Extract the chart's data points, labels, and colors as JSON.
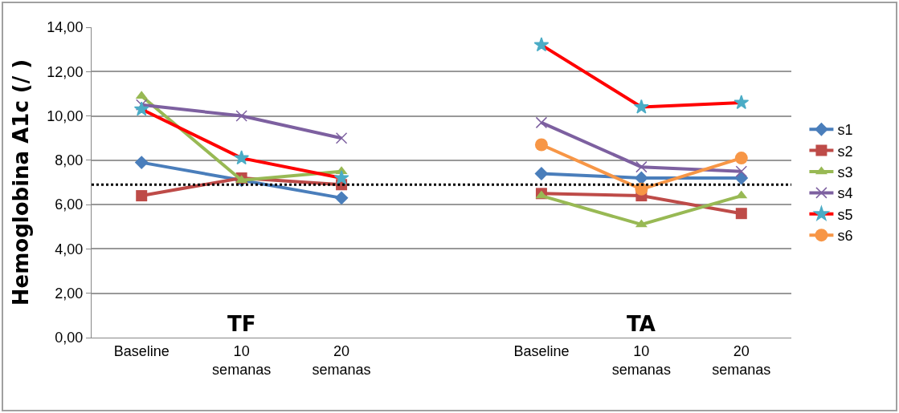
{
  "chart_data": {
    "type": "line",
    "ylabel": "Hemoglobina A1c (/ )",
    "categories": [
      "Baseline",
      "10 semanas",
      "20 semanas",
      null,
      "Baseline",
      "10 semanas",
      "20 semanas"
    ],
    "series": [
      {
        "name": "s1",
        "color": "#4a7ebb",
        "marker": "diamond",
        "values": [
          7.9,
          7.1,
          6.3,
          null,
          7.4,
          7.2,
          7.2
        ]
      },
      {
        "name": "s2",
        "color": "#be4b48",
        "marker": "square",
        "values": [
          6.4,
          7.2,
          6.9,
          null,
          6.5,
          6.4,
          5.6
        ]
      },
      {
        "name": "s3",
        "color": "#98b954",
        "marker": "triangle",
        "values": [
          10.9,
          7.1,
          7.5,
          null,
          6.4,
          5.1,
          6.4
        ]
      },
      {
        "name": "s4",
        "color": "#7d60a0",
        "marker": "cross",
        "values": [
          10.5,
          10.0,
          9.0,
          null,
          9.7,
          7.7,
          7.5
        ]
      },
      {
        "name": "s5",
        "color": "#ff0000",
        "colors": [
          "#4bacc6",
          "#4bacc6",
          "#4bacc6",
          "#4bacc6",
          "#4bacc6",
          "#4bacc6",
          "#4bacc6"
        ],
        "marker": "star",
        "values": [
          10.3,
          8.1,
          7.2,
          null,
          13.2,
          10.4,
          10.6
        ]
      },
      {
        "name": "s6",
        "color": "#f79646",
        "marker": "circle",
        "values": [
          null,
          null,
          null,
          null,
          8.7,
          6.7,
          8.1
        ]
      }
    ],
    "ylim": [
      0,
      14
    ],
    "yticks": [
      {
        "value": 0,
        "label": "0,00"
      },
      {
        "value": 2,
        "label": "2,00"
      },
      {
        "value": 4,
        "label": "4,00"
      },
      {
        "value": 6,
        "label": "6,00"
      },
      {
        "value": 8,
        "label": "8,00"
      },
      {
        "value": 10,
        "label": "10,00"
      },
      {
        "value": 12,
        "label": "12,00"
      },
      {
        "value": 14,
        "label": "14,00"
      }
    ],
    "ref_lines": [
      {
        "axis": "y",
        "value": 6.9,
        "color": "#000000",
        "line_style": "dotted"
      }
    ],
    "annotations": [
      "TF",
      "TA"
    ],
    "grid": "y",
    "legend": "right",
    "line_style": "solid"
  }
}
